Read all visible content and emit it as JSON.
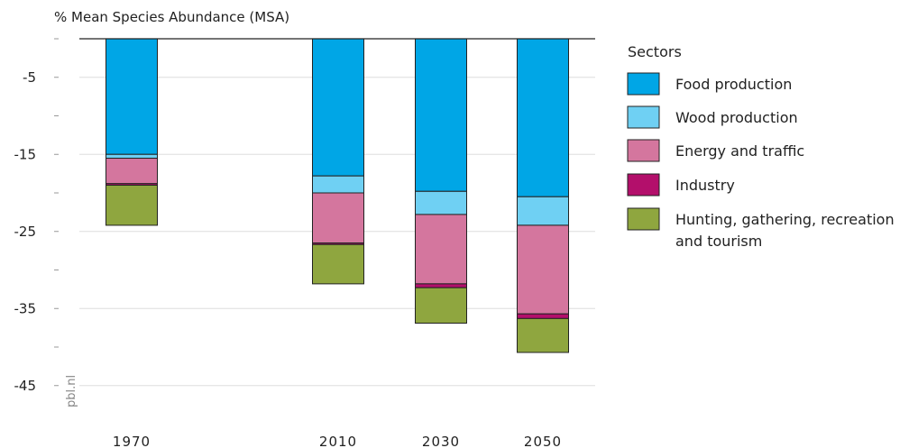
{
  "chart_data": {
    "type": "bar",
    "stacked": true,
    "title": "",
    "ylabel": "% Mean Species Abundance (MSA)",
    "xlabel": "",
    "ylim": [
      -45,
      0
    ],
    "yticks": [
      -5,
      -15,
      -25,
      -35,
      -45
    ],
    "grid": true,
    "categories": [
      "1970",
      "2010",
      "2030",
      "2050"
    ],
    "series": [
      {
        "name": "Food production",
        "color": "#00a6e6",
        "values": [
          -15.0,
          -17.8,
          -19.8,
          -20.5
        ]
      },
      {
        "name": "Wood production",
        "color": "#6fd0f3",
        "values": [
          -0.5,
          -2.2,
          -3.0,
          -3.7
        ]
      },
      {
        "name": "Energy and traffic",
        "color": "#d4769e",
        "values": [
          -3.3,
          -6.5,
          -9.0,
          -11.5
        ]
      },
      {
        "name": "Industry",
        "color": "#b30f6b",
        "values": [
          -0.2,
          -0.2,
          -0.5,
          -0.6
        ]
      },
      {
        "name": "Hunting, gathering, recreation and tourism",
        "color": "#8fa63f",
        "values": [
          -5.2,
          -5.1,
          -4.6,
          -4.4
        ]
      }
    ],
    "legend": {
      "title": "Sectors",
      "position": "right",
      "labels": [
        [
          "Food production"
        ],
        [
          "Wood production"
        ],
        [
          "Energy and traffic"
        ],
        [
          "Industry"
        ],
        [
          "Hunting, gathering, recreation",
          "and tourism"
        ]
      ]
    },
    "watermark": "pbl.nl"
  }
}
